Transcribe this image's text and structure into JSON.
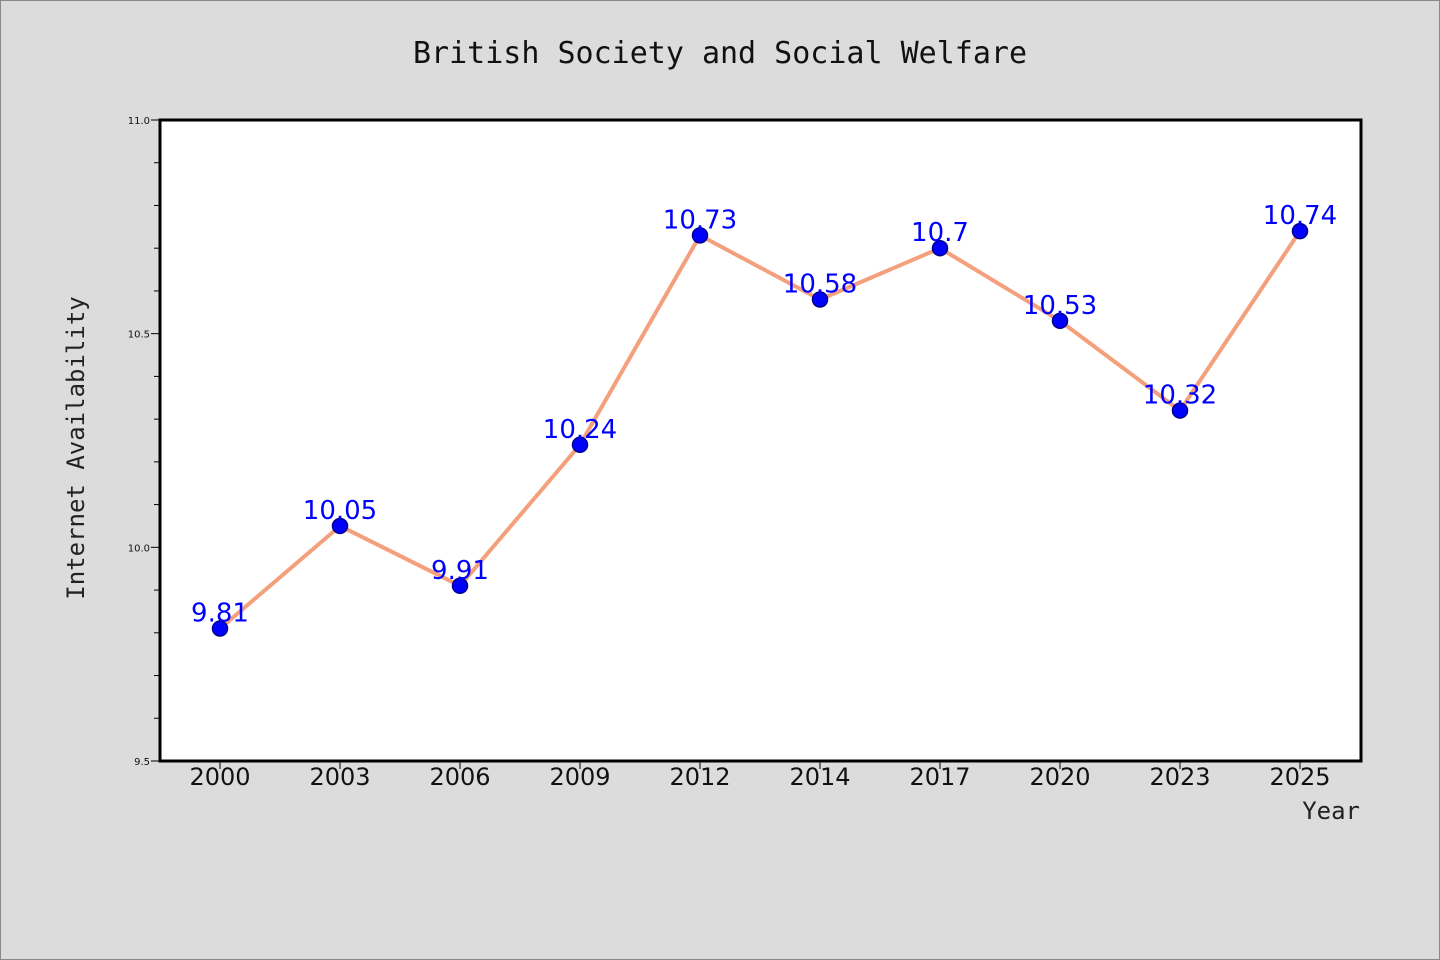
{
  "chart_data": {
    "type": "line",
    "title": "British Society and Social Welfare",
    "xlabel": "Year",
    "ylabel": "Internet Availability",
    "categories": [
      "2000",
      "2003",
      "2006",
      "2009",
      "2012",
      "2014",
      "2017",
      "2020",
      "2023",
      "2025"
    ],
    "series": [
      {
        "values": [
          9.81,
          10.05,
          9.91,
          10.24,
          10.73,
          10.58,
          10.7,
          10.53,
          10.32,
          10.74
        ],
        "labels": [
          "9.81",
          "10.05",
          "9.91",
          "10.24",
          "10.73",
          "10.58",
          "10.7",
          "10.53",
          "10.32",
          "10.74"
        ]
      }
    ],
    "ylim": [
      9.5,
      11.0
    ],
    "yticks": [
      "9.5",
      "10.0",
      "10.5",
      "11.0"
    ],
    "grid": false,
    "colors": {
      "line": "#f4a07c",
      "marker": "#0000ff",
      "marker_edge": "#00008b",
      "data_label": "#0000ff",
      "plot_bg": "#ffffff",
      "figure_bg": "#dcdcdc"
    }
  }
}
